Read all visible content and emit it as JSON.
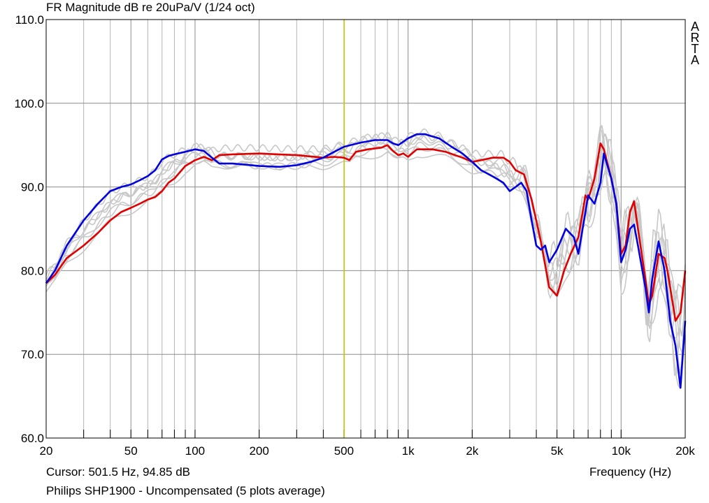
{
  "chart_data": {
    "type": "line",
    "title": "FR Magnitude dB re 20uPa/V (1/24 oct)",
    "xlabel": "Frequency (Hz)",
    "ylabel": "",
    "x_scale": "log",
    "xlim": [
      20,
      20000
    ],
    "ylim": [
      60,
      110
    ],
    "grid": true,
    "y_ticks": [
      "60.0",
      "70.0",
      "80.0",
      "90.0",
      "100.0",
      "110.0"
    ],
    "x_ticks": [
      {
        "value": 20,
        "label": "20"
      },
      {
        "value": 50,
        "label": "50"
      },
      {
        "value": 100,
        "label": "100"
      },
      {
        "value": 200,
        "label": "200"
      },
      {
        "value": 500,
        "label": "500"
      },
      {
        "value": 1000,
        "label": "1k"
      },
      {
        "value": 2000,
        "label": "2k"
      },
      {
        "value": 5000,
        "label": "5k"
      },
      {
        "value": 10000,
        "label": "10k"
      },
      {
        "value": 20000,
        "label": "20k"
      }
    ],
    "cursor": {
      "frequency": 501.5,
      "level": 94.85
    },
    "series": [
      {
        "color": "#e00000",
        "points": [
          [
            20,
            78.5
          ],
          [
            22,
            79.5
          ],
          [
            25,
            81.5
          ],
          [
            30,
            83
          ],
          [
            35,
            84.5
          ],
          [
            40,
            86
          ],
          [
            45,
            87
          ],
          [
            50,
            87.5
          ],
          [
            55,
            88
          ],
          [
            60,
            88.5
          ],
          [
            65,
            88.8
          ],
          [
            70,
            89.5
          ],
          [
            75,
            90.5
          ],
          [
            80,
            91
          ],
          [
            90,
            92.5
          ],
          [
            100,
            93.2
          ],
          [
            110,
            93.6
          ],
          [
            120,
            93.2
          ],
          [
            130,
            93.8
          ],
          [
            150,
            93.9
          ],
          [
            200,
            94
          ],
          [
            300,
            93.8
          ],
          [
            400,
            93.5
          ],
          [
            450,
            93.6
          ],
          [
            500,
            93.5
          ],
          [
            530,
            93.2
          ],
          [
            570,
            94.2
          ],
          [
            650,
            94.5
          ],
          [
            750,
            94.7
          ],
          [
            800,
            95
          ],
          [
            850,
            94.3
          ],
          [
            900,
            93.8
          ],
          [
            950,
            94
          ],
          [
            1000,
            93.6
          ],
          [
            1100,
            94.5
          ],
          [
            1300,
            94.5
          ],
          [
            1500,
            94.2
          ],
          [
            1800,
            93.5
          ],
          [
            2000,
            93
          ],
          [
            2200,
            93.2
          ],
          [
            2500,
            93.5
          ],
          [
            2800,
            93.5
          ],
          [
            3000,
            93
          ],
          [
            3200,
            92
          ],
          [
            3500,
            91.5
          ],
          [
            3800,
            88.5
          ],
          [
            4200,
            83.5
          ],
          [
            4600,
            78
          ],
          [
            5000,
            77
          ],
          [
            5400,
            80
          ],
          [
            5800,
            82
          ],
          [
            6300,
            84
          ],
          [
            6800,
            89
          ],
          [
            7000,
            88.5
          ],
          [
            7500,
            91
          ],
          [
            8000,
            95.2
          ],
          [
            8300,
            94.5
          ],
          [
            9000,
            91
          ],
          [
            9500,
            88
          ],
          [
            10000,
            82
          ],
          [
            10500,
            83
          ],
          [
            11000,
            87
          ],
          [
            11500,
            88.3
          ],
          [
            12000,
            85
          ],
          [
            13000,
            79
          ],
          [
            13500,
            76
          ],
          [
            14000,
            77
          ],
          [
            15000,
            82
          ],
          [
            16000,
            81.5
          ],
          [
            16500,
            80
          ],
          [
            17000,
            78
          ],
          [
            18000,
            74
          ],
          [
            19000,
            75
          ],
          [
            20000,
            80
          ]
        ]
      },
      {
        "color": "#0000e0",
        "points": [
          [
            20,
            78.5
          ],
          [
            22,
            80
          ],
          [
            25,
            83
          ],
          [
            30,
            86
          ],
          [
            35,
            88
          ],
          [
            40,
            89.5
          ],
          [
            45,
            90
          ],
          [
            50,
            90.3
          ],
          [
            55,
            90.8
          ],
          [
            60,
            91.3
          ],
          [
            65,
            92
          ],
          [
            70,
            93.3
          ],
          [
            75,
            93.7
          ],
          [
            80,
            93.9
          ],
          [
            90,
            94.2
          ],
          [
            100,
            94.5
          ],
          [
            110,
            94.3
          ],
          [
            120,
            93.5
          ],
          [
            130,
            92.8
          ],
          [
            150,
            92.8
          ],
          [
            200,
            92.5
          ],
          [
            250,
            92.4
          ],
          [
            300,
            92.6
          ],
          [
            350,
            93
          ],
          [
            400,
            93.5
          ],
          [
            450,
            94.2
          ],
          [
            500,
            94.8
          ],
          [
            600,
            95.3
          ],
          [
            700,
            95.6
          ],
          [
            800,
            95.6
          ],
          [
            850,
            95.2
          ],
          [
            900,
            95
          ],
          [
            1000,
            95.8
          ],
          [
            1100,
            96.3
          ],
          [
            1200,
            96.3
          ],
          [
            1400,
            95.8
          ],
          [
            1600,
            94.8
          ],
          [
            1800,
            94
          ],
          [
            2000,
            93
          ],
          [
            2200,
            92
          ],
          [
            2400,
            91.5
          ],
          [
            2600,
            91
          ],
          [
            2800,
            90.5
          ],
          [
            3000,
            89.5
          ],
          [
            3200,
            90
          ],
          [
            3400,
            90.5
          ],
          [
            3600,
            89.5
          ],
          [
            3800,
            86
          ],
          [
            4000,
            83
          ],
          [
            4200,
            82.5
          ],
          [
            4400,
            83
          ],
          [
            4600,
            81
          ],
          [
            5000,
            82.5
          ],
          [
            5500,
            85
          ],
          [
            6000,
            84
          ],
          [
            6300,
            82
          ],
          [
            6800,
            87
          ],
          [
            7000,
            89
          ],
          [
            7500,
            88
          ],
          [
            8000,
            90.5
          ],
          [
            8300,
            94
          ],
          [
            9000,
            91
          ],
          [
            9500,
            88
          ],
          [
            10000,
            81
          ],
          [
            10500,
            82.5
          ],
          [
            11000,
            85
          ],
          [
            11500,
            85.5
          ],
          [
            12000,
            83
          ],
          [
            13000,
            78
          ],
          [
            13500,
            75
          ],
          [
            14000,
            79
          ],
          [
            15000,
            83.5
          ],
          [
            16000,
            80
          ],
          [
            17000,
            74
          ],
          [
            18000,
            71
          ],
          [
            19000,
            66
          ],
          [
            20000,
            74
          ]
        ]
      }
    ]
  },
  "labels": {
    "logo_letters": [
      "A",
      "R",
      "T",
      "A"
    ],
    "cursor_prefix": "Cursor: ",
    "cursor_text": "Cursor: 501.5 Hz, 94.85 dB",
    "caption": "Philips SHP1900 - Uncompensated (5 plots average)"
  }
}
